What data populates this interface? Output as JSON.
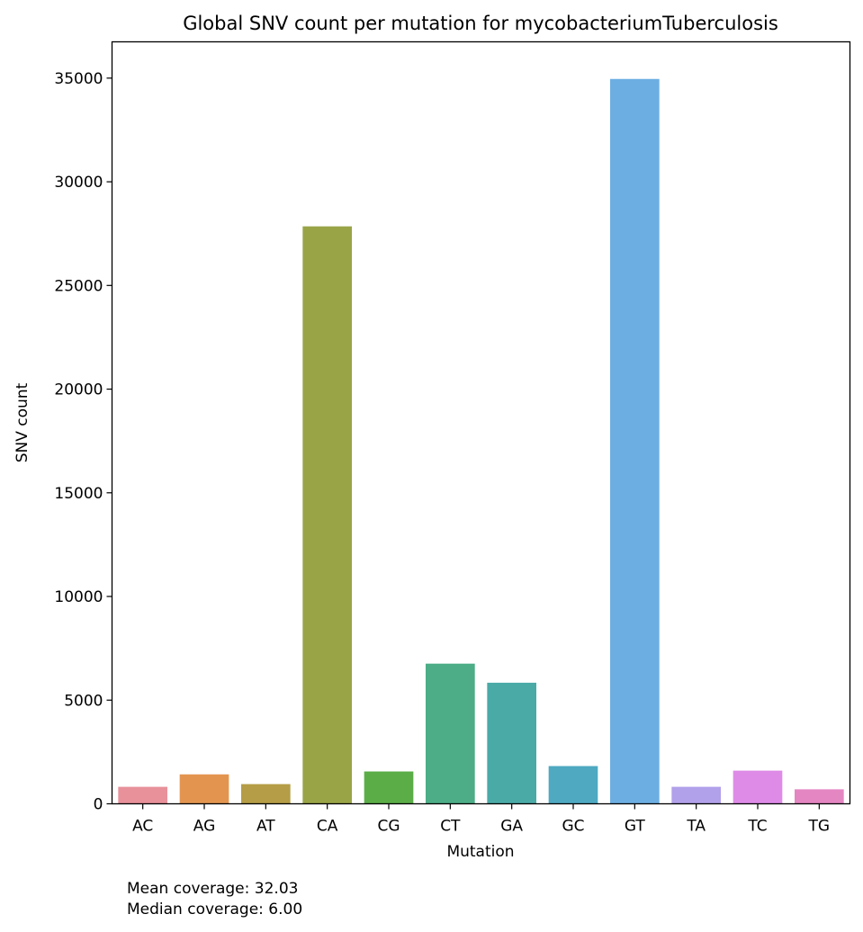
{
  "chart_data": {
    "type": "bar",
    "title": "Global SNV count per mutation for mycobacteriumTuberculosis",
    "xlabel": "Mutation",
    "ylabel": "SNV count",
    "ylim": [
      0,
      36750
    ],
    "yticks": [
      0,
      5000,
      10000,
      15000,
      20000,
      25000,
      30000,
      35000
    ],
    "categories": [
      "AC",
      "AG",
      "AT",
      "CA",
      "CG",
      "CT",
      "GA",
      "GC",
      "GT",
      "TA",
      "TC",
      "TG"
    ],
    "values": [
      820,
      1420,
      950,
      27850,
      1560,
      6760,
      5840,
      1820,
      34960,
      820,
      1600,
      700
    ],
    "colors": [
      "#e8919a",
      "#e39550",
      "#b49d46",
      "#99a447",
      "#5bad47",
      "#4cad86",
      "#4aaaa6",
      "#4ea9c1",
      "#6caee2",
      "#b1a0ea",
      "#de8be8",
      "#e486c2"
    ],
    "grid": false,
    "legend": "none"
  },
  "annotations": {
    "mean_coverage": "Mean coverage: 32.03",
    "median_coverage": "Median coverage: 6.00"
  }
}
